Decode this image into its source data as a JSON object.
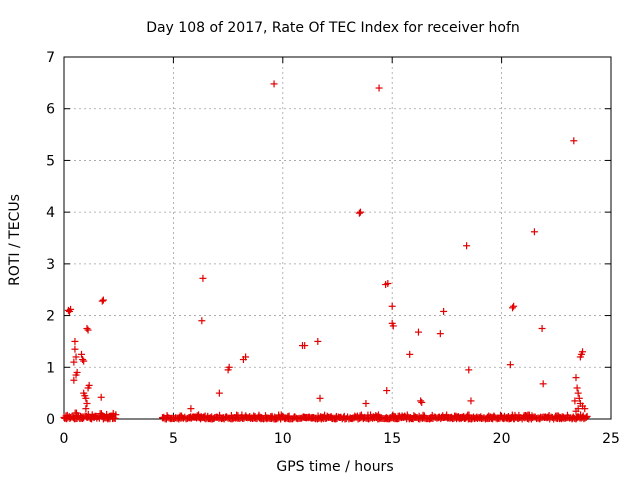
{
  "chart_data": {
    "type": "scatter",
    "title": "Day 108 of 2017, Rate Of TEC Index for receiver hofn",
    "xlabel": "GPS time / hours",
    "ylabel": "ROTI / TECUs",
    "xlim": [
      0,
      25
    ],
    "ylim": [
      0,
      7
    ],
    "xticks": [
      0,
      5,
      10,
      15,
      20,
      25
    ],
    "yticks": [
      0,
      1,
      2,
      3,
      4,
      5,
      6,
      7
    ],
    "grid": true,
    "marker": "+",
    "color": "#e00000",
    "points": [
      [
        0.2,
        2.1
      ],
      [
        0.3,
        2.12
      ],
      [
        0.25,
        2.08
      ],
      [
        0.5,
        1.5
      ],
      [
        0.5,
        1.35
      ],
      [
        0.55,
        1.2
      ],
      [
        0.45,
        1.1
      ],
      [
        0.6,
        0.9
      ],
      [
        0.55,
        0.85
      ],
      [
        0.45,
        0.75
      ],
      [
        0.8,
        1.25
      ],
      [
        0.85,
        1.15
      ],
      [
        0.9,
        1.12
      ],
      [
        0.9,
        0.5
      ],
      [
        0.95,
        0.45
      ],
      [
        1.0,
        0.4
      ],
      [
        1.05,
        0.3
      ],
      [
        1.0,
        0.2
      ],
      [
        1.05,
        1.75
      ],
      [
        1.1,
        1.72
      ],
      [
        1.15,
        0.65
      ],
      [
        1.1,
        0.6
      ],
      [
        1.75,
        2.28
      ],
      [
        1.8,
        2.3
      ],
      [
        1.7,
        0.42
      ],
      [
        5.8,
        0.2
      ],
      [
        6.3,
        1.9
      ],
      [
        6.35,
        2.72
      ],
      [
        7.1,
        0.5
      ],
      [
        7.5,
        0.95
      ],
      [
        7.55,
        1.0
      ],
      [
        8.2,
        1.15
      ],
      [
        8.3,
        1.2
      ],
      [
        9.6,
        6.48
      ],
      [
        10.9,
        1.42
      ],
      [
        11.0,
        1.42
      ],
      [
        11.6,
        1.5
      ],
      [
        11.7,
        0.4
      ],
      [
        13.5,
        3.98
      ],
      [
        13.55,
        4.0
      ],
      [
        13.8,
        0.3
      ],
      [
        14.4,
        6.4
      ],
      [
        14.7,
        2.6
      ],
      [
        14.8,
        2.62
      ],
      [
        14.75,
        0.55
      ],
      [
        15.0,
        2.18
      ],
      [
        15.05,
        1.8
      ],
      [
        15.0,
        1.85
      ],
      [
        15.8,
        1.25
      ],
      [
        16.2,
        1.68
      ],
      [
        16.3,
        0.35
      ],
      [
        16.35,
        0.32
      ],
      [
        17.2,
        1.65
      ],
      [
        17.35,
        2.08
      ],
      [
        18.4,
        3.35
      ],
      [
        18.5,
        0.95
      ],
      [
        18.6,
        0.35
      ],
      [
        20.4,
        1.05
      ],
      [
        20.5,
        2.15
      ],
      [
        20.55,
        2.18
      ],
      [
        21.5,
        3.62
      ],
      [
        21.85,
        1.75
      ],
      [
        21.9,
        0.68
      ],
      [
        23.3,
        5.38
      ],
      [
        23.6,
        1.2
      ],
      [
        23.7,
        1.3
      ],
      [
        23.65,
        1.25
      ],
      [
        23.4,
        0.8
      ],
      [
        23.45,
        0.6
      ],
      [
        23.5,
        0.5
      ],
      [
        23.55,
        0.4
      ],
      [
        23.35,
        0.35
      ],
      [
        23.6,
        0.3
      ],
      [
        23.7,
        0.25
      ],
      [
        23.5,
        0.2
      ],
      [
        23.4,
        0.15
      ],
      [
        23.8,
        0.2
      ]
    ],
    "dense_bands": [
      {
        "x_start": 0.0,
        "x_end": 2.4,
        "y_max": 0.12
      },
      {
        "x_start": 4.5,
        "x_end": 23.9,
        "y_max": 0.08
      }
    ]
  }
}
